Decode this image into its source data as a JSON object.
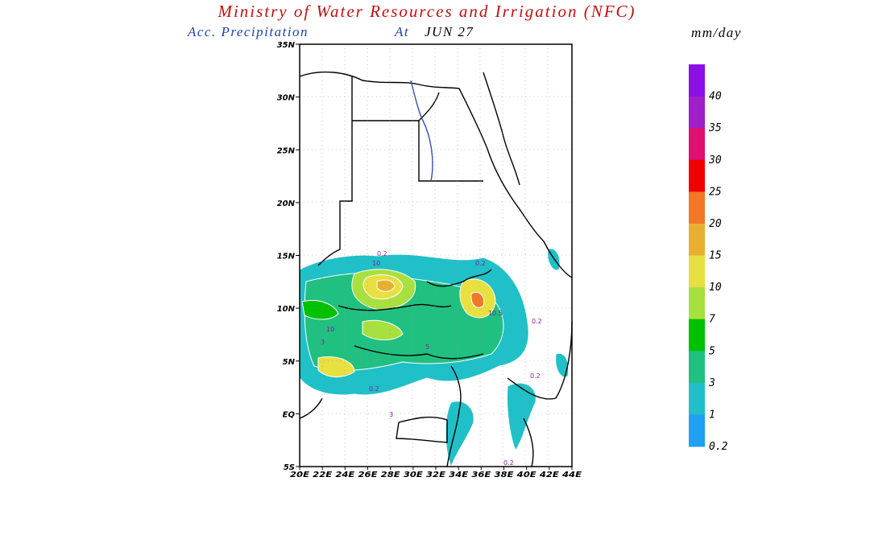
{
  "header": {
    "title": "Ministry of Water Resources and Irrigation (NFC)",
    "subtitle": "Acc. Precipitation",
    "subtitle_at": "At",
    "date": "JUN 27",
    "units": "mm/day"
  },
  "map": {
    "lat_labels": [
      "35N",
      "30N",
      "25N",
      "20N",
      "15N",
      "10N",
      "5N",
      "EQ",
      "5S"
    ],
    "lon_labels": [
      "20E",
      "22E",
      "24E",
      "26E",
      "28E",
      "30E",
      "32E",
      "34E",
      "36E",
      "38E",
      "40E",
      "42E",
      "44E"
    ],
    "contour_labels": [
      "0.2",
      "10",
      "0.2",
      "10.5",
      "0.2",
      "10",
      "3",
      "5",
      "0.2",
      "0.2",
      "0.2",
      "3"
    ]
  },
  "colorbar": {
    "labels": [
      "40",
      "35",
      "30",
      "25",
      "20",
      "15",
      "10",
      "7",
      "5",
      "3",
      "1",
      "0.2"
    ],
    "colors": [
      "#8a10e8",
      "#a020c8",
      "#e01070",
      "#f00000",
      "#f07828",
      "#e8b030",
      "#e8e040",
      "#a8e040",
      "#00c000",
      "#20c080",
      "#20c0c8",
      "#20a0f0"
    ]
  }
}
